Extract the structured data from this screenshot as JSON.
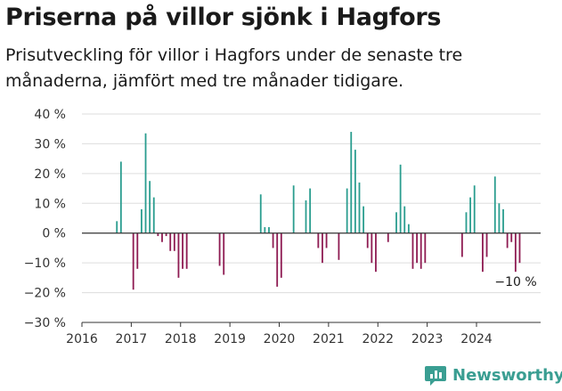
{
  "title": "Priserna på villor sjönk i Hagfors",
  "subtitle": "Prisutveckling för villor i Hagfors under de senaste tre månaderna, jämfört med tre månader tidigare.",
  "brand": "Newsworthy",
  "colors": {
    "positive": "#2a9d8f",
    "negative": "#8e1b52",
    "grid": "#dddddd",
    "brand": "#3a9e92"
  },
  "chart_data": {
    "type": "bar",
    "title": "Priserna på villor sjönk i Hagfors",
    "xlabel": "",
    "ylabel": "",
    "ylim": [
      -30,
      40
    ],
    "xlim": [
      2016,
      2025.3
    ],
    "x_ticks": [
      2016,
      2017,
      2018,
      2019,
      2020,
      2021,
      2022,
      2023,
      2024
    ],
    "x_tick_labels": [
      "2016",
      "2017",
      "2018",
      "2019",
      "2020",
      "2021",
      "2022",
      "2023",
      "2024"
    ],
    "y_ticks": [
      -30,
      -20,
      -10,
      0,
      10,
      20,
      30,
      40
    ],
    "y_tick_labels": [
      "−30 %",
      "−20 %",
      "−10 %",
      "0 %",
      "10 %",
      "20 %",
      "30 %",
      "40 %"
    ],
    "grid": true,
    "annotation": {
      "text": "−10 %"
    },
    "points": [
      {
        "x": "2016-09",
        "value": 4
      },
      {
        "x": "2016-10",
        "value": 24
      },
      {
        "x": "2017-01",
        "value": -19
      },
      {
        "x": "2017-02",
        "value": -12
      },
      {
        "x": "2017-03",
        "value": 8
      },
      {
        "x": "2017-04",
        "value": 33.5
      },
      {
        "x": "2017-05",
        "value": 17.5
      },
      {
        "x": "2017-06",
        "value": 12
      },
      {
        "x": "2017-07",
        "value": -1
      },
      {
        "x": "2017-08",
        "value": -3
      },
      {
        "x": "2017-09",
        "value": -1
      },
      {
        "x": "2017-10",
        "value": -6
      },
      {
        "x": "2017-11",
        "value": -6
      },
      {
        "x": "2017-12",
        "value": -15
      },
      {
        "x": "2018-01",
        "value": -12
      },
      {
        "x": "2018-02",
        "value": -12
      },
      {
        "x": "2018-10",
        "value": -11
      },
      {
        "x": "2018-11",
        "value": -14
      },
      {
        "x": "2019-08",
        "value": 13
      },
      {
        "x": "2019-09",
        "value": 2
      },
      {
        "x": "2019-10",
        "value": 2
      },
      {
        "x": "2019-11",
        "value": -5
      },
      {
        "x": "2019-12",
        "value": -18
      },
      {
        "x": "2020-01",
        "value": -15
      },
      {
        "x": "2020-04",
        "value": 16
      },
      {
        "x": "2020-07",
        "value": 11
      },
      {
        "x": "2020-08",
        "value": 15
      },
      {
        "x": "2020-10",
        "value": -5
      },
      {
        "x": "2020-11",
        "value": -10
      },
      {
        "x": "2020-12",
        "value": -5
      },
      {
        "x": "2021-03",
        "value": -9
      },
      {
        "x": "2021-05",
        "value": 15
      },
      {
        "x": "2021-06",
        "value": 34
      },
      {
        "x": "2021-07",
        "value": 28
      },
      {
        "x": "2021-08",
        "value": 17
      },
      {
        "x": "2021-09",
        "value": 9
      },
      {
        "x": "2021-10",
        "value": -5
      },
      {
        "x": "2021-11",
        "value": -10
      },
      {
        "x": "2021-12",
        "value": -13
      },
      {
        "x": "2022-03",
        "value": -3
      },
      {
        "x": "2022-05",
        "value": 7
      },
      {
        "x": "2022-06",
        "value": 23
      },
      {
        "x": "2022-07",
        "value": 9
      },
      {
        "x": "2022-08",
        "value": 3
      },
      {
        "x": "2022-09",
        "value": -12
      },
      {
        "x": "2022-10",
        "value": -10
      },
      {
        "x": "2022-11",
        "value": -12
      },
      {
        "x": "2022-12",
        "value": -10
      },
      {
        "x": "2023-09",
        "value": -8
      },
      {
        "x": "2023-10",
        "value": 7
      },
      {
        "x": "2023-11",
        "value": 12
      },
      {
        "x": "2023-12",
        "value": 16
      },
      {
        "x": "2024-02",
        "value": -13
      },
      {
        "x": "2024-03",
        "value": -8
      },
      {
        "x": "2024-05",
        "value": 19
      },
      {
        "x": "2024-06",
        "value": 10
      },
      {
        "x": "2024-07",
        "value": 8
      },
      {
        "x": "2024-08",
        "value": -5
      },
      {
        "x": "2024-09",
        "value": -3
      },
      {
        "x": "2024-10",
        "value": -13
      },
      {
        "x": "2024-11",
        "value": -10
      }
    ]
  }
}
